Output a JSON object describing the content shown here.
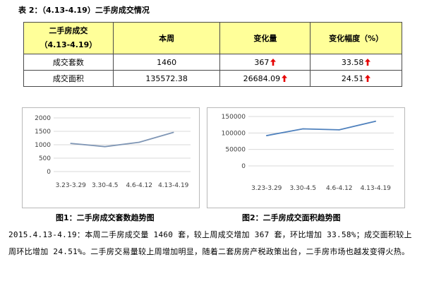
{
  "table_title": "表 2：（4.13-4.19）二手房成交情况",
  "table": {
    "headers": [
      "二手房成交",
      "（4.13-4.19）",
      "本周",
      "变化量",
      "变化幅度（%）"
    ],
    "rows": [
      {
        "label": "成交套数",
        "week": "1460",
        "change": "367",
        "pct": "33.58"
      },
      {
        "label": "成交面积",
        "week": "135572.38",
        "change": "26684.09",
        "pct": "24.51"
      }
    ],
    "arrow_color": "#e60000",
    "header_bg": "#ffff99"
  },
  "chart_data": [
    {
      "type": "line",
      "title": "",
      "categories": [
        "3.23-3.29",
        "3.30-4.5",
        "4.6-4.12",
        "4.13-4.19"
      ],
      "yticks": [
        "0",
        "500",
        "1000",
        "1500",
        "2000"
      ],
      "ylim": [
        0,
        2000
      ],
      "series": [
        {
          "values": [
            1050,
            930,
            1093,
            1460
          ]
        }
      ],
      "line_color": "#7f96b5",
      "grid": true
    },
    {
      "type": "line",
      "title": "",
      "categories": [
        "3.23-3.29",
        "3.30-4.5",
        "4.6-4.12",
        "4.13-4.19"
      ],
      "yticks": [
        "0",
        "50000",
        "100000",
        "150000"
      ],
      "ylim": [
        0,
        150000
      ],
      "series": [
        {
          "values": [
            92000,
            112500,
            109500,
            135572
          ]
        }
      ],
      "line_color": "#4f81bd",
      "grid": true
    }
  ],
  "captions": [
    "图1：二手房成交套数趋势图",
    "图2：二手房成交面积趋势图"
  ],
  "paragraph": "2015.4.13-4.19：本周二手房成交量 1460 套，较上周成交增加 367 套，环比增加 33.58%；成交面积较上周环比增加 24.51%。二手房交易量较上周增加明显，随着二套房房产税政策出台，二手房市场也越发变得火热。"
}
